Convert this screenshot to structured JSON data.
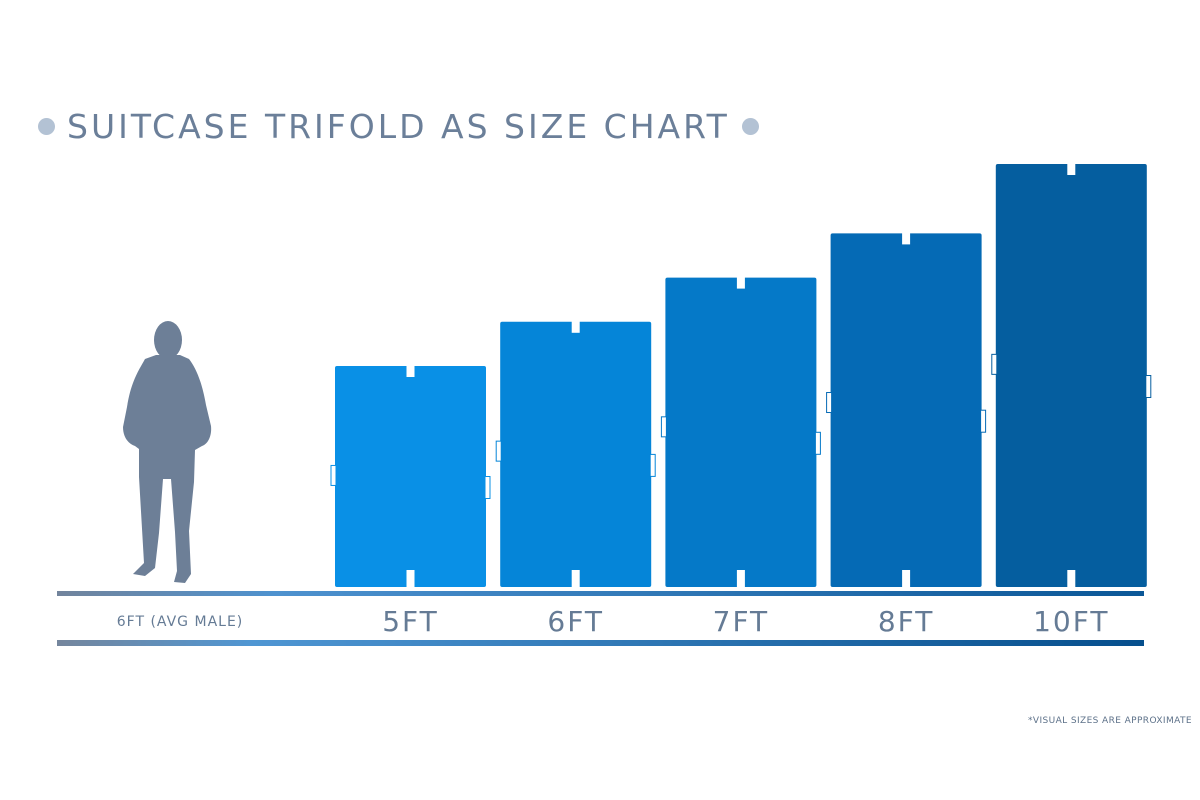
{
  "chart_data": {
    "type": "bar",
    "title": "SUITCASE TRIFOLD AS SIZE CHART",
    "reference": {
      "label": "6FT (AVG MALE)",
      "value": 6,
      "color": "#6d7f97"
    },
    "categories": [
      "5FT",
      "6FT",
      "7FT",
      "8FT",
      "10FT"
    ],
    "values": [
      5,
      6,
      7,
      8,
      10
    ],
    "colors": [
      "#0990e6",
      "#0585d8",
      "#0579c8",
      "#056ab5",
      "#055e9f"
    ],
    "xlabel": "",
    "ylabel": "",
    "grid": false,
    "legend": "none",
    "footnote": "*VISUAL SIZES ARE APPROXIMATE"
  }
}
